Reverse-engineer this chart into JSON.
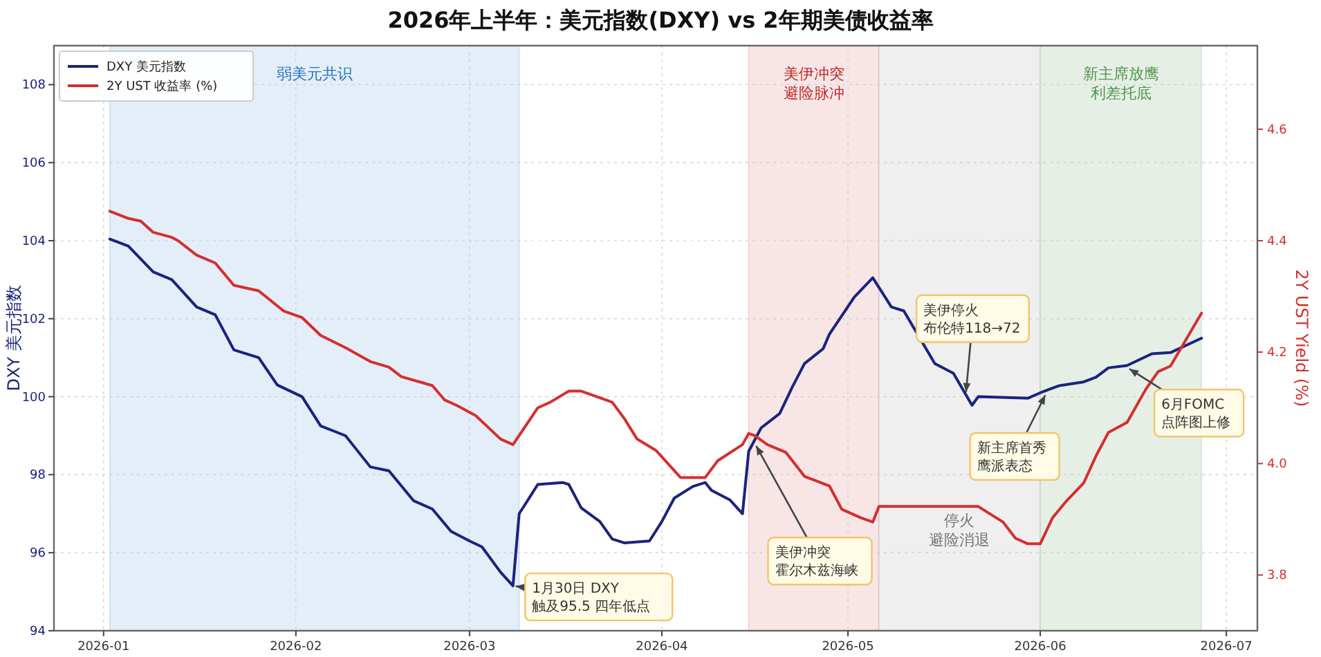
{
  "chart_data": {
    "type": "line",
    "title": "2026年上半年：美元指数(DXY) vs 2年期美债收益率",
    "ylabel": "DXY 美元指数",
    "y2label": "2Y UST Yield (%)",
    "xlim": [
      "2025-12-24",
      "2026-07-06"
    ],
    "xticks": [
      "2026-01",
      "2026-02",
      "2026-03",
      "2026-04",
      "2026-05",
      "2026-06",
      "2026-07"
    ],
    "ylim": [
      94,
      109
    ],
    "yticks": [
      94,
      96,
      98,
      100,
      102,
      104,
      106,
      108
    ],
    "y2lim": [
      3.7,
      4.75
    ],
    "y2ticks": [
      3.8,
      {
        "value": 4,
        "label": "4.0"
      },
      4.2,
      4.4,
      4.6
    ],
    "grid": true,
    "legend": "top left",
    "line_style": "solid",
    "marker": "none",
    "series": [
      {
        "name": "DXY 美元指数",
        "color": "#1a237e",
        "x": [
          "2026-01-02",
          "2026-01-05",
          "2026-01-09",
          "2026-01-12",
          "2026-01-16",
          "2026-01-19",
          "2026-01-22",
          "2026-01-26",
          "2026-01-29",
          "2026-02-02",
          "2026-02-05",
          "2026-02-09",
          "2026-02-13",
          "2026-02-16",
          "2026-02-20",
          "2026-02-23",
          "2026-02-26",
          "2026-03-01",
          "2026-03-03",
          "2026-03-06",
          "2026-03-08",
          "2026-03-09",
          "2026-03-12",
          "2026-03-16",
          "2026-03-17",
          "2026-03-19",
          "2026-03-22",
          "2026-03-24",
          "2026-03-26",
          "2026-03-30",
          "2026-04-01",
          "2026-04-03",
          "2026-04-06",
          "2026-04-08",
          "2026-04-09",
          "2026-04-12",
          "2026-04-14",
          "2026-04-15",
          "2026-04-17",
          "2026-04-20",
          "2026-04-22",
          "2026-04-24",
          "2026-04-27",
          "2026-04-28",
          "2026-05-02",
          "2026-05-05",
          "2026-05-08",
          "2026-05-10",
          "2026-05-15",
          "2026-05-18",
          "2026-05-21",
          "2026-05-22",
          "2026-05-30",
          "2026-06-01",
          "2026-06-04",
          "2026-06-08",
          "2026-06-10",
          "2026-06-12",
          "2026-06-15",
          "2026-06-19",
          "2026-06-22",
          "2026-06-27"
        ],
        "values": [
          104.04,
          103.86,
          103.2,
          103.0,
          102.3,
          102.1,
          101.2,
          101.0,
          100.3,
          100.0,
          99.25,
          99.0,
          98.2,
          98.1,
          97.33,
          97.12,
          96.55,
          96.3,
          96.15,
          95.5,
          95.15,
          97.0,
          97.75,
          97.8,
          97.75,
          97.15,
          96.8,
          96.35,
          96.25,
          96.3,
          96.8,
          97.4,
          97.7,
          97.8,
          97.6,
          97.35,
          97.0,
          98.6,
          99.2,
          99.57,
          100.24,
          100.85,
          101.23,
          101.6,
          102.55,
          103.05,
          102.3,
          102.2,
          100.85,
          100.6,
          99.78,
          100.0,
          99.96,
          100.1,
          100.28,
          100.38,
          100.5,
          100.74,
          100.8,
          101.1,
          101.13,
          101.5
        ]
      },
      {
        "name": "2Y UST 收益率 (%)",
        "color": "#d32f2f",
        "axis": "y2",
        "x": [
          "2026-01-02",
          "2026-01-05",
          "2026-01-07",
          "2026-01-09",
          "2026-01-12",
          "2026-01-13",
          "2026-01-16",
          "2026-01-19",
          "2026-01-22",
          "2026-01-26",
          "2026-01-30",
          "2026-02-02",
          "2026-02-05",
          "2026-02-09",
          "2026-02-13",
          "2026-02-16",
          "2026-02-18",
          "2026-02-23",
          "2026-02-25",
          "2026-02-27",
          "2026-03-02",
          "2026-03-06",
          "2026-03-08",
          "2026-03-12",
          "2026-03-14",
          "2026-03-17",
          "2026-03-19",
          "2026-03-22",
          "2026-03-24",
          "2026-03-26",
          "2026-03-28",
          "2026-03-31",
          "2026-04-01",
          "2026-04-04",
          "2026-04-08",
          "2026-04-10",
          "2026-04-14",
          "2026-04-15",
          "2026-04-16",
          "2026-04-18",
          "2026-04-21",
          "2026-04-24",
          "2026-04-28",
          "2026-04-30",
          "2026-05-03",
          "2026-05-05",
          "2026-05-06",
          "2026-05-22",
          "2026-05-26",
          "2026-05-28",
          "2026-05-30",
          "2026-06-01",
          "2026-06-03",
          "2026-06-05",
          "2026-06-08",
          "2026-06-10",
          "2026-06-12",
          "2026-06-15",
          "2026-06-18",
          "2026-06-20",
          "2026-06-22",
          "2026-06-27"
        ],
        "values": [
          4.453,
          4.44,
          4.435,
          4.415,
          4.406,
          4.4,
          4.374,
          4.36,
          4.32,
          4.31,
          4.274,
          4.262,
          4.23,
          4.208,
          4.183,
          4.173,
          4.156,
          4.14,
          4.114,
          4.104,
          4.086,
          4.044,
          4.034,
          4.1,
          4.11,
          4.13,
          4.13,
          4.118,
          4.11,
          4.08,
          4.044,
          4.024,
          4.012,
          3.975,
          3.975,
          4.005,
          4.034,
          4.054,
          4.05,
          4.034,
          4.02,
          3.977,
          3.96,
          3.918,
          3.903,
          3.895,
          3.923,
          3.923,
          3.895,
          3.866,
          3.856,
          3.856,
          3.903,
          3.93,
          3.965,
          4.014,
          4.056,
          4.074,
          4.133,
          4.165,
          4.175,
          4.27
        ]
      }
    ],
    "bands": [
      {
        "axis": "x",
        "from": "2026-01-02",
        "to": "2026-03-09",
        "label": "弱美元共识",
        "color": "#e4eef8"
      },
      {
        "axis": "x",
        "from": "2026-04-15",
        "to": "2026-05-06",
        "label": "美伊冲突避险脉冲",
        "color": "#f8e6e6"
      },
      {
        "axis": "x",
        "from": "2026-05-06",
        "to": "2026-06-01",
        "label": "停火避险消退",
        "color": "#efefef"
      },
      {
        "axis": "x",
        "from": "2026-06-01",
        "to": "2026-06-27",
        "label": "新主席放鹰利差托底",
        "color": "#e6efe6"
      }
    ],
    "annotations": [
      {
        "text": "1月30日 DXY\n触及95.5 四年低点",
        "x": "2026-03-08",
        "y": 95.15
      },
      {
        "text": "美伊冲突霍尔木兹海峡",
        "x": "2026-04-16",
        "y": 98.8
      },
      {
        "text": "美伊停火布伦特118→72",
        "x": "2026-05-20",
        "y": 100.05
      },
      {
        "text": "新主席首秀鹰派表态",
        "x": "2026-06-02",
        "y": 100.1
      },
      {
        "text": "6月FOMC\n点阵图上修",
        "x": "2026-06-15",
        "y": 100.75
      }
    ]
  }
}
